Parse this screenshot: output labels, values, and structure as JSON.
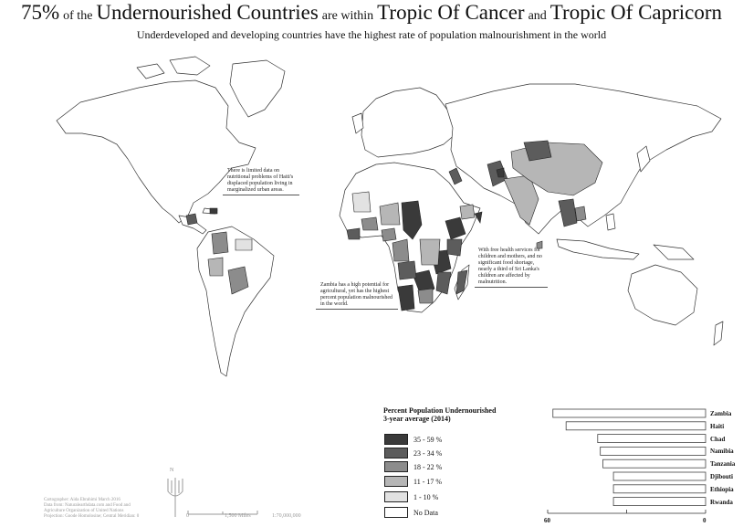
{
  "header": {
    "title_parts": [
      "75%",
      "of the",
      "Undernourished Countries",
      "are within",
      "Tropic Of Cancer",
      "and",
      "Tropic Of Capricorn"
    ],
    "subtitle": "Underdeveloped and developing countries have the highest rate of population malnourishment in the world"
  },
  "callouts": {
    "haiti": [
      "There is limited data on",
      "nutritional problems of Haiti's",
      "displaced population living in",
      "marginalized urban areas."
    ],
    "sri_lanka": [
      "With free health services for",
      "children and mothers, and no",
      "significant food shortage,",
      "nearly a third of Sri Lanka's",
      "children are affected by",
      "malnutrition."
    ],
    "zambia": [
      "Zambia has a high potential for",
      "agricultural, yet has the highest",
      "percent population malnourished",
      "in the world."
    ]
  },
  "legend": {
    "title_line1": "Percent Population Undernourished",
    "title_line2": "3-year average (2014)",
    "classes": [
      {
        "label": "35 - 59 %",
        "color": "#3a3a3a"
      },
      {
        "label": "23 - 34 %",
        "color": "#5c5c5c"
      },
      {
        "label": "18 - 22 %",
        "color": "#8c8c8c"
      },
      {
        "label": "11 - 17 %",
        "color": "#b6b6b6"
      },
      {
        "label": "1 - 10  %",
        "color": "#e2e2e2"
      },
      {
        "label": "No Data",
        "color": "#ffffff"
      }
    ]
  },
  "credits": [
    "Cartographer: Aida Ebrahimi  March 2016",
    "Data from: Naturalearthdata.com and Food and",
    "Agriculture Organization of United Nations",
    "Projection: Goode Homolosine; Central Meridian: 0"
  ],
  "scale": {
    "zero": "0",
    "distance": "1,500 Miles",
    "ratio": "1:70,000,000"
  },
  "north": {
    "label": "N"
  },
  "chart_data": {
    "type": "bar",
    "orientation": "horizontal",
    "categories": [
      "Zambia",
      "Haiti",
      "Chad",
      "Namibia",
      "Tanzania",
      "Djibouti",
      "Ethiopia",
      "Rwanda"
    ],
    "values": [
      58,
      53,
      41,
      40,
      39,
      35,
      35,
      35
    ],
    "xlim": [
      60,
      0
    ],
    "ticks": [
      "60",
      "0"
    ]
  }
}
